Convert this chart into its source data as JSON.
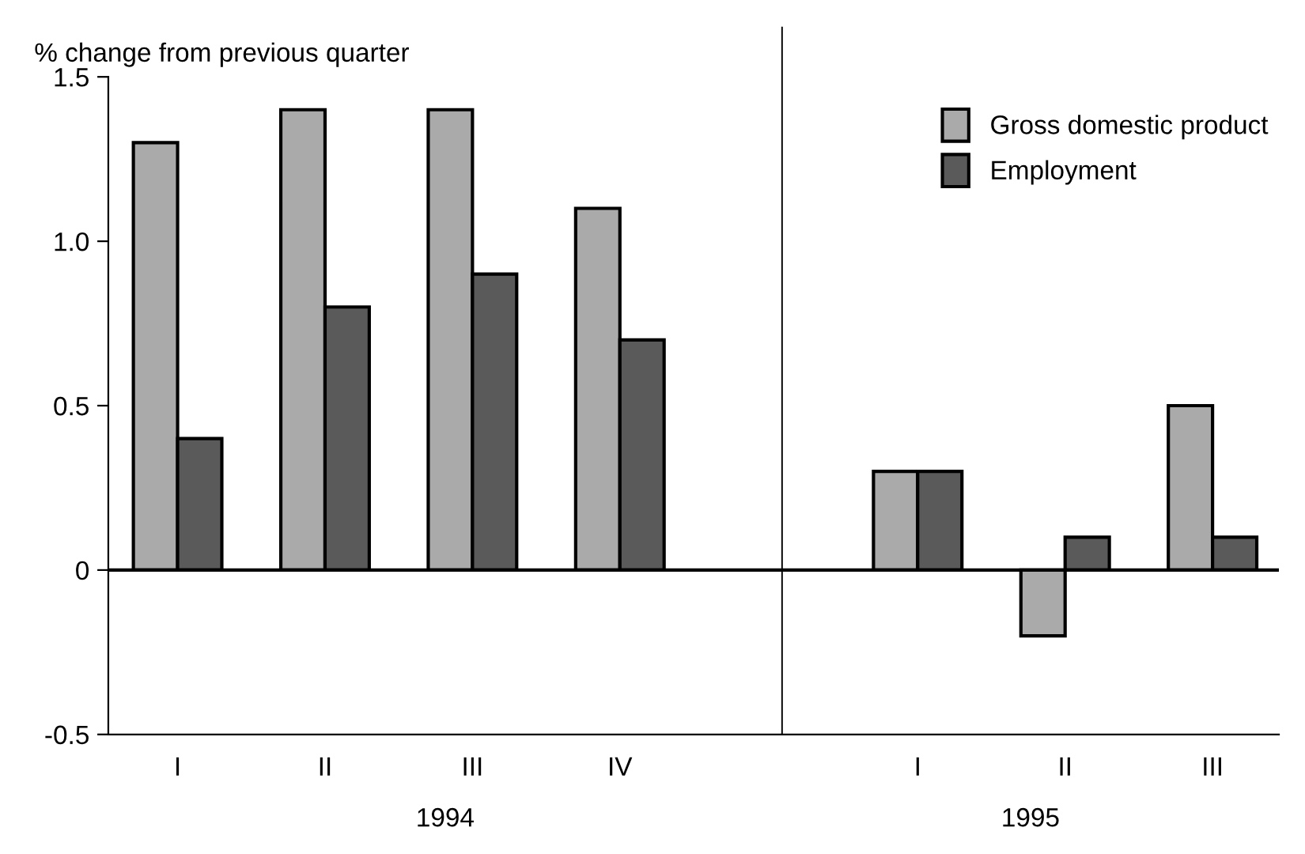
{
  "chart_data": [
    {
      "type": "bar",
      "ylabel": "% change from previous quarter",
      "xlabel": "1994",
      "categories": [
        "I",
        "II",
        "III",
        "IV"
      ],
      "series": [
        {
          "name": "Gross domestic product",
          "color": "#aaaaaa",
          "values": [
            1.3,
            1.4,
            1.4,
            1.1
          ]
        },
        {
          "name": "Employment",
          "color": "#5a5a5a",
          "values": [
            0.4,
            0.8,
            0.9,
            0.7
          ]
        }
      ],
      "ylim": [
        -0.5,
        1.5
      ],
      "yticks": [
        {
          "value": -0.5,
          "label": "-0.5"
        },
        0,
        0.5,
        {
          "value": 1.0,
          "label": "1.0"
        },
        1.5
      ],
      "ref_lines": [
        {
          "axis": "y",
          "value": 0,
          "label": null
        }
      ],
      "legend": "top right",
      "grid": false
    },
    {
      "type": "bar",
      "xlabel": "1995",
      "categories": [
        "I",
        "II",
        "III"
      ],
      "series": [
        {
          "color": "#aaaaaa",
          "values": [
            0.3,
            -0.2,
            0.5
          ]
        },
        {
          "color": "#5a5a5a",
          "values": [
            0.3,
            0.1,
            0.1
          ]
        }
      ],
      "ylim": [
        -0.5,
        1.5
      ],
      "ref_lines": [
        {
          "axis": "y",
          "value": 0,
          "label": null
        }
      ],
      "tick_labels": "x",
      "grid": false
    }
  ]
}
